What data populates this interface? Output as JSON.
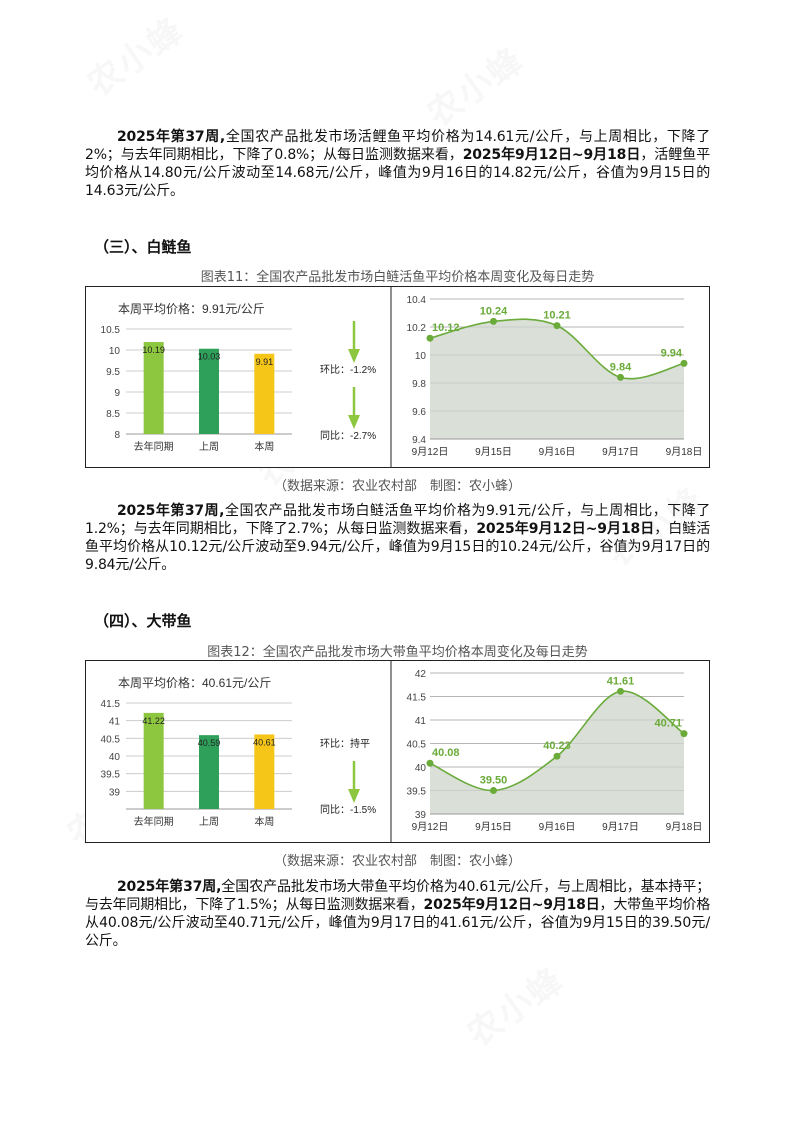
{
  "watermark": "农小蜂",
  "section_intro": {
    "lead": "2025年第37周,",
    "text1": "全国农产品批发市场活鲤鱼平均价格为14.61元/公斤，与上周相比，下降了2%；与去年同期相比，下降了0.8%；从每日监测数据来看，",
    "dates": "2025年9月12日~9月18日",
    "text2": "，活鲤鱼平均价格从14.80元/公斤波动至14.68元/公斤，峰值为9月16日的14.82元/公斤，谷值为9月15日的14.63元/公斤。"
  },
  "sections": [
    {
      "heading": "（三）、白鲢鱼",
      "caption": "图表11：全国农产品批发市场白鲢活鱼平均价格本周变化及每日走势",
      "source": "（数据来源：农业农村部　制图：农小蜂）",
      "para": {
        "lead": "2025年第37周,",
        "text1": "全国农产品批发市场白鲢活鱼平均价格为9.91元/公斤，与上周相比，下降了1.2%；与去年同期相比，下降了2.7%；从每日监测数据来看，",
        "dates": "2025年9月12日~9月18日",
        "text2": "，白鲢活鱼平均价格从10.12元/公斤波动至9.94元/公斤，峰值为9月15日的10.24元/公斤，谷值为9月17日的9.84元/公斤。"
      }
    },
    {
      "heading": "（四）、大带鱼",
      "caption": "图表12：全国农产品批发市场大带鱼平均价格本周变化及每日走势",
      "source": "（数据来源：农业农村部　制图：农小蜂）",
      "para": {
        "lead": "2025年第37周,",
        "text1": "全国农产品批发市场大带鱼平均价格为40.61元/公斤，与上周相比，基本持平；与去年同期相比，下降了1.5%；从每日监测数据来看，",
        "dates": "2025年9月12日~9月18日",
        "text2": "，大带鱼平均价格从40.08元/公斤波动至40.71元/公斤，峰值为9月17日的41.61元/公斤，谷值为9月15日的39.50元/公斤。"
      }
    }
  ],
  "chart_data": [
    {
      "type": "bar",
      "title": "本周平均价格：9.91元/公斤",
      "categories": [
        "去年同期",
        "上周",
        "本周"
      ],
      "values": [
        10.19,
        10.03,
        9.91
      ],
      "value_labels": [
        "10.19",
        "10.03",
        "9.91"
      ],
      "colors": [
        "#8dc63f",
        "#2ea05a",
        "#f5c518"
      ],
      "ylim": [
        8,
        10.5
      ],
      "yticks": [
        "8",
        "8.5",
        "9",
        "9.5",
        "10",
        "10.5"
      ],
      "ytick_values": [
        8,
        8.5,
        9,
        9.5,
        10,
        10.5
      ],
      "grid": true,
      "annotations": [
        {
          "label": "环比：-1.2%",
          "direction": "down"
        },
        {
          "label": "同比：-2.7%",
          "direction": "down"
        }
      ]
    },
    {
      "type": "area",
      "x": [
        "9月12日",
        "9月15日",
        "9月16日",
        "9月17日",
        "9月18日"
      ],
      "y": [
        10.12,
        10.24,
        10.21,
        9.84,
        9.94
      ],
      "value_labels": [
        "10.12",
        "10.24",
        "10.21",
        "9.84",
        "9.94"
      ],
      "ylim": [
        9.4,
        10.4
      ],
      "yticks": [
        "9.4",
        "9.6",
        "9.8",
        "10",
        "10.2",
        "10.4"
      ],
      "ytick_values": [
        9.4,
        9.6,
        9.8,
        10,
        10.2,
        10.4
      ],
      "grid": true,
      "line_color": "#6aab3a",
      "fill_color": "#d6dbd4"
    },
    {
      "type": "bar",
      "title": "本周平均价格：40.61元/公斤",
      "categories": [
        "去年同期",
        "上周",
        "本周"
      ],
      "values": [
        41.22,
        40.59,
        40.61
      ],
      "value_labels": [
        "41.22",
        "40.59",
        "40.61"
      ],
      "colors": [
        "#8dc63f",
        "#2ea05a",
        "#f5c518"
      ],
      "ylim": [
        38.5,
        41.5
      ],
      "yticks": [
        "39",
        "39.5",
        "40",
        "40.5",
        "41",
        "41.5"
      ],
      "ytick_values": [
        39,
        39.5,
        40,
        40.5,
        41,
        41.5
      ],
      "grid": true,
      "annotations": [
        {
          "label": "环比：持平",
          "direction": "none"
        },
        {
          "label": "同比：-1.5%",
          "direction": "down"
        }
      ]
    },
    {
      "type": "area",
      "x": [
        "9月12日",
        "9月15日",
        "9月16日",
        "9月17日",
        "9月18日"
      ],
      "y": [
        40.08,
        39.5,
        40.23,
        41.61,
        40.71
      ],
      "value_labels": [
        "40.08",
        "39.50",
        "40.23",
        "41.61",
        "40.71"
      ],
      "ylim": [
        39,
        42
      ],
      "yticks": [
        "39",
        "39.5",
        "40",
        "40.5",
        "41",
        "41.5",
        "42"
      ],
      "ytick_values": [
        39,
        39.5,
        40,
        40.5,
        41,
        41.5,
        42
      ],
      "grid": true,
      "line_color": "#6aab3a",
      "fill_color": "#d6dbd4"
    }
  ]
}
